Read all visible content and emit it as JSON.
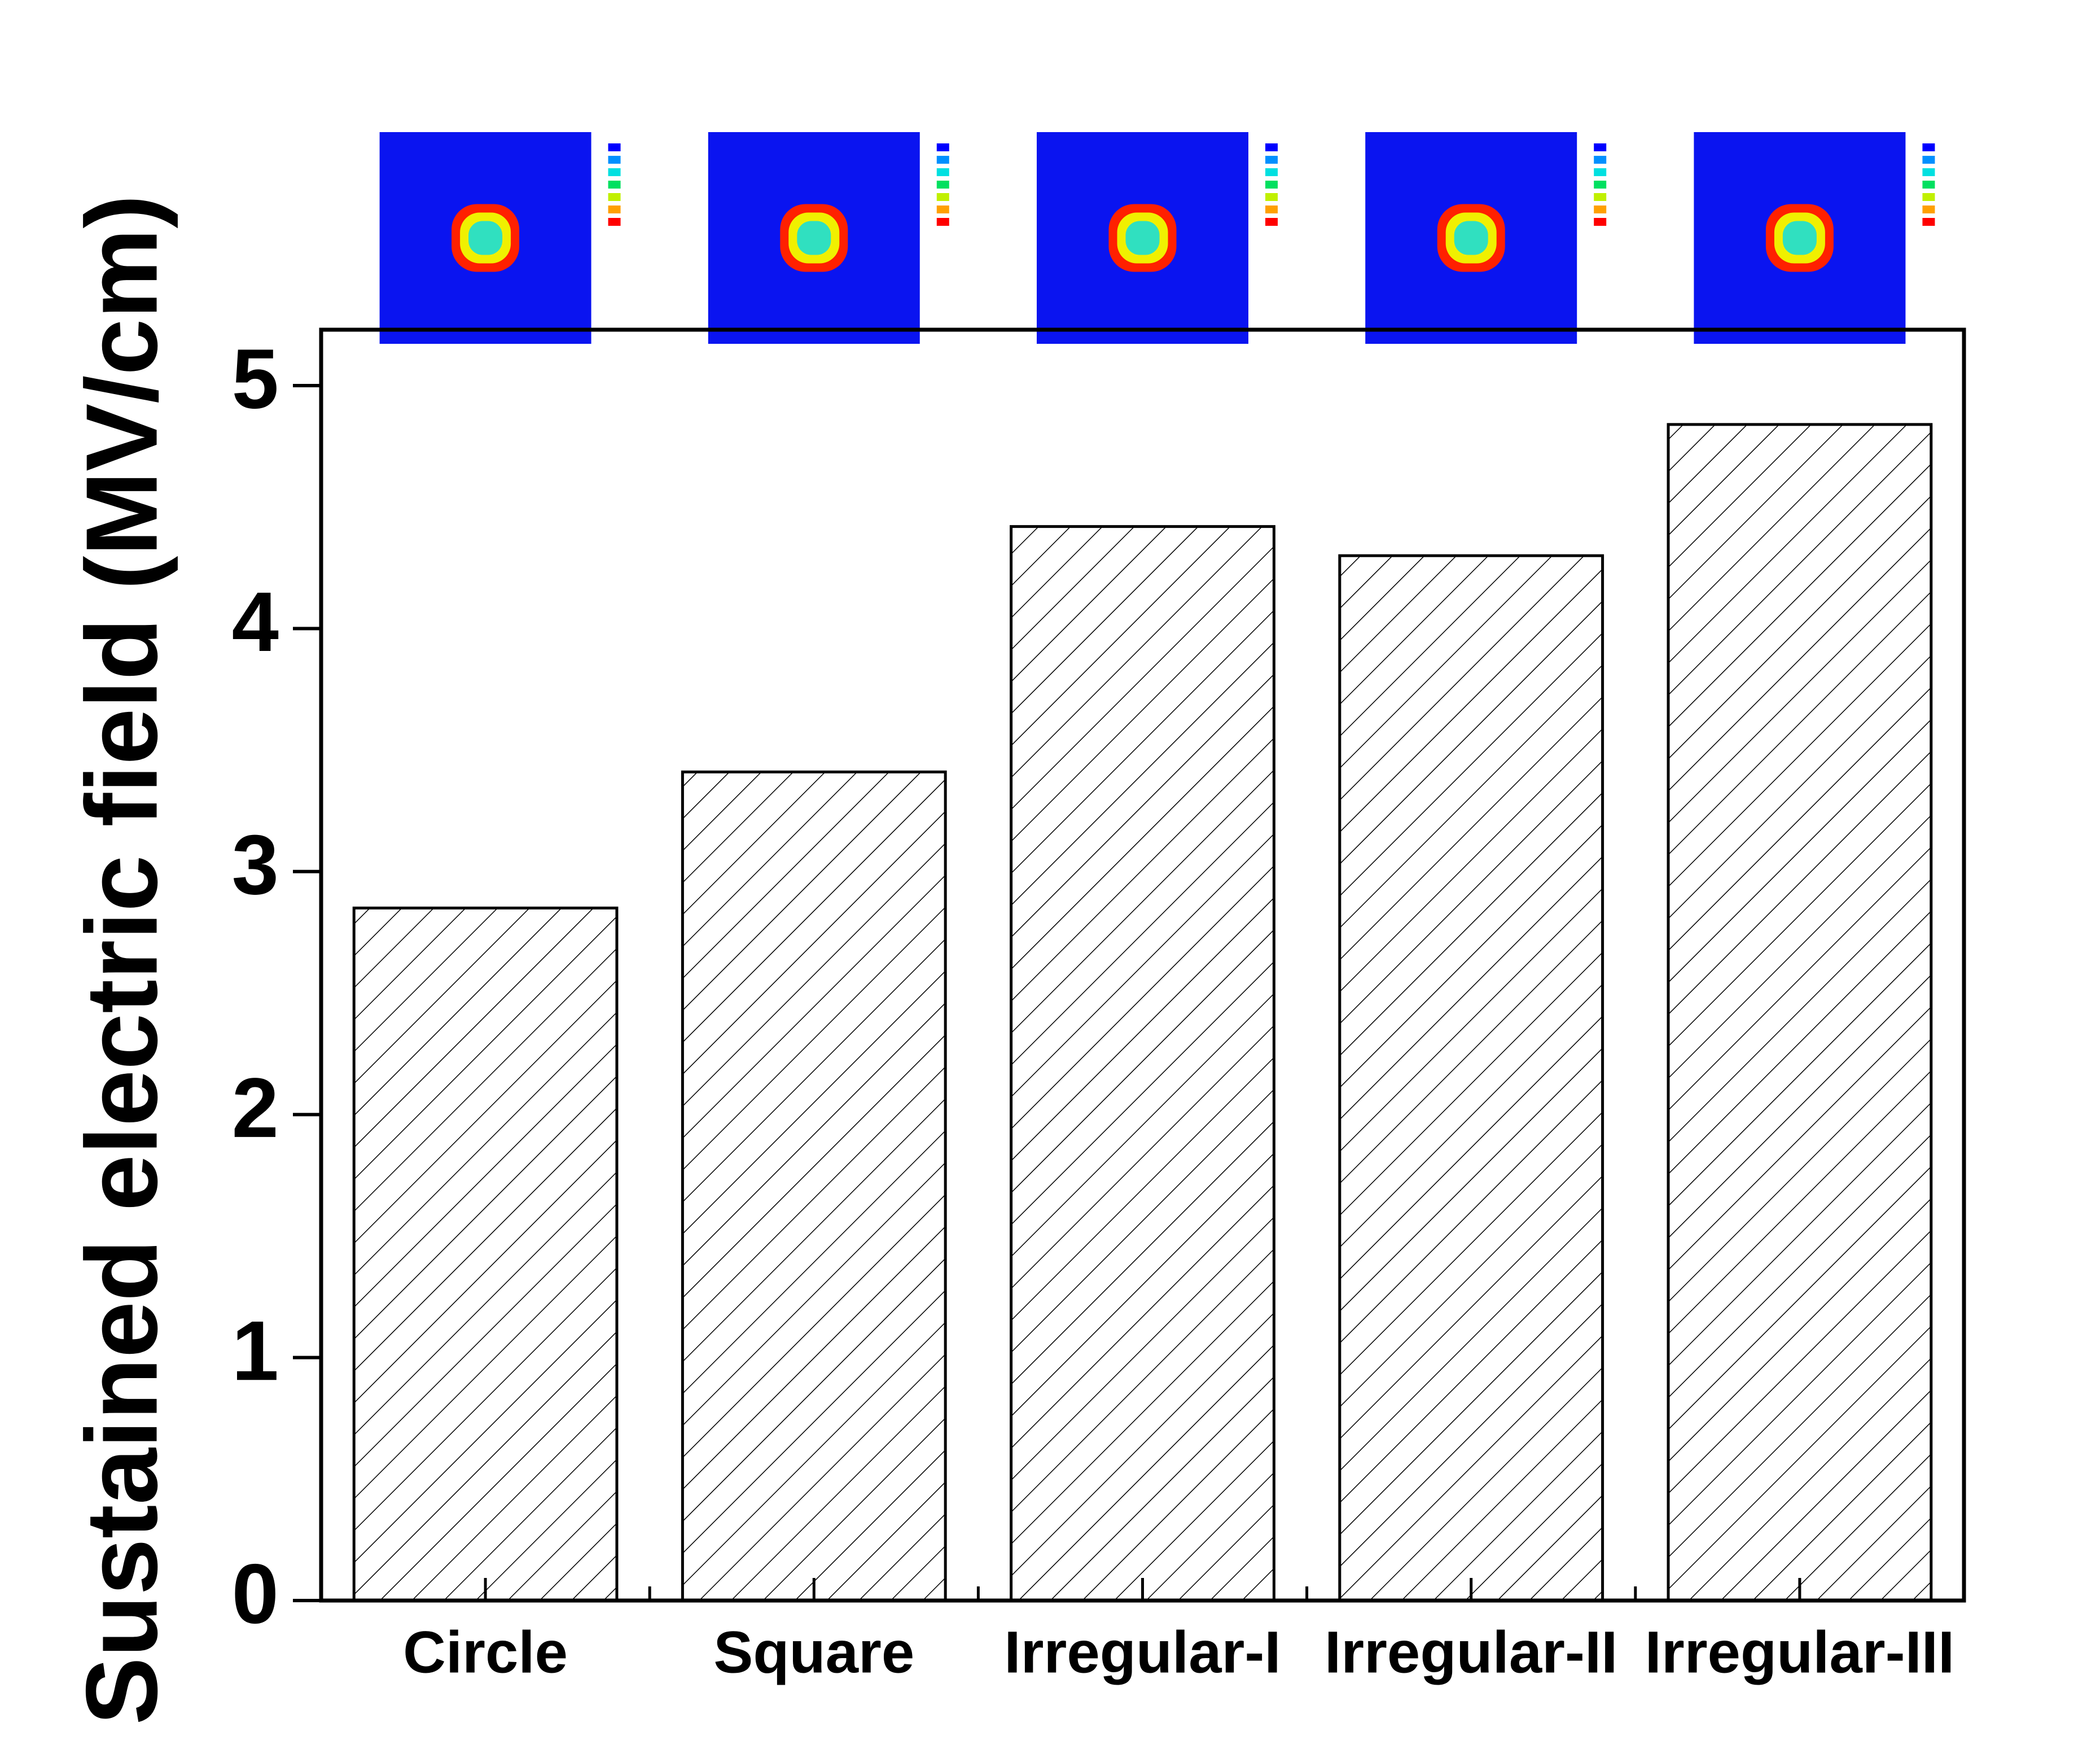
{
  "chart_data": {
    "type": "bar",
    "y_label": "Sustained electric field (MV/cm)",
    "categories": [
      "Circle",
      "Square",
      "Irregular-I",
      "Irregular-II",
      "Irregular-III"
    ],
    "values": [
      2.85,
      3.41,
      4.42,
      4.3,
      4.84
    ],
    "color": "#000000",
    "ylim": [
      0,
      5.23
    ],
    "yticks": [
      0,
      1,
      2,
      3,
      4,
      5
    ]
  }
}
